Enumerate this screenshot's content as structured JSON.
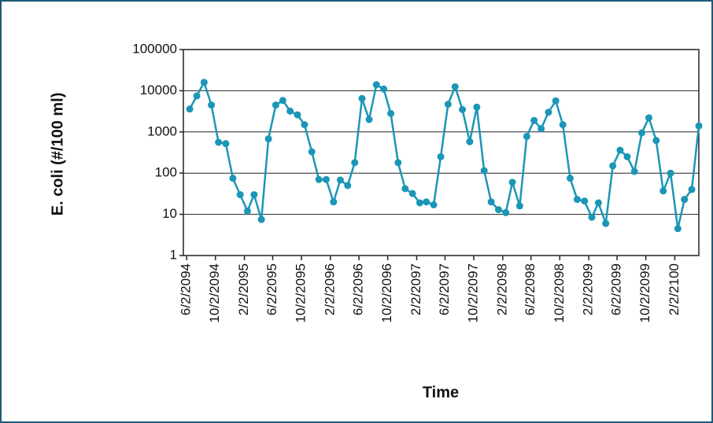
{
  "chart_data": {
    "type": "line",
    "ylabel": "E. coli (#/100 ml)",
    "xlabel": "Time",
    "yscale": "log",
    "grid": true,
    "ylim": [
      1,
      100000
    ],
    "yticks": [
      1,
      10,
      100,
      1000,
      10000,
      100000
    ],
    "xlim": [
      "2094-05-19",
      "2100-05-15"
    ],
    "xticks": [
      {
        "value": "2094-06-02",
        "label": "6/2/2094"
      },
      {
        "value": "2094-10-02",
        "label": "10/2/2094"
      },
      {
        "value": "2095-02-02",
        "label": "2/2/2095"
      },
      {
        "value": "2095-06-02",
        "label": "6/2/2095"
      },
      {
        "value": "2095-10-02",
        "label": "10/2/2095"
      },
      {
        "value": "2096-02-02",
        "label": "2/2/2096"
      },
      {
        "value": "2096-06-02",
        "label": "6/2/2096"
      },
      {
        "value": "2096-10-02",
        "label": "10/2/2096"
      },
      {
        "value": "2097-02-02",
        "label": "2/2/2097"
      },
      {
        "value": "2097-06-02",
        "label": "6/2/2097"
      },
      {
        "value": "2097-10-02",
        "label": "10/2/2097"
      },
      {
        "value": "2098-02-02",
        "label": "2/2/2098"
      },
      {
        "value": "2098-06-02",
        "label": "6/2/2098"
      },
      {
        "value": "2098-10-02",
        "label": "10/2/2098"
      },
      {
        "value": "2099-02-02",
        "label": "2/2/2099"
      },
      {
        "value": "2099-06-02",
        "label": "6/2/2099"
      },
      {
        "value": "2099-10-02",
        "label": "10/2/2099"
      },
      {
        "value": "2100-02-02",
        "label": "2/2/2100"
      }
    ],
    "x": [
      "2094-06-15",
      "2094-07-15",
      "2094-08-15",
      "2094-09-15",
      "2094-10-15",
      "2094-11-15",
      "2094-12-15",
      "2095-01-15",
      "2095-02-15",
      "2095-03-15",
      "2095-04-15",
      "2095-05-15",
      "2095-06-15",
      "2095-07-15",
      "2095-08-15",
      "2095-09-15",
      "2095-10-15",
      "2095-11-15",
      "2095-12-15",
      "2096-01-15",
      "2096-02-15",
      "2096-03-15",
      "2096-04-15",
      "2096-05-15",
      "2096-06-15",
      "2096-07-15",
      "2096-08-15",
      "2096-09-15",
      "2096-10-15",
      "2096-11-15",
      "2096-12-15",
      "2097-01-15",
      "2097-02-15",
      "2097-03-15",
      "2097-04-15",
      "2097-05-15",
      "2097-06-15",
      "2097-07-15",
      "2097-08-15",
      "2097-09-15",
      "2097-10-15",
      "2097-11-15",
      "2097-12-15",
      "2098-01-15",
      "2098-02-15",
      "2098-03-15",
      "2098-04-15",
      "2098-05-15",
      "2098-06-15",
      "2098-07-15",
      "2098-08-15",
      "2098-09-15",
      "2098-10-15",
      "2098-11-15",
      "2098-12-15",
      "2099-01-15",
      "2099-02-15",
      "2099-03-15",
      "2099-04-15",
      "2099-05-15",
      "2099-06-15",
      "2099-07-15",
      "2099-08-15",
      "2099-09-15",
      "2099-10-15",
      "2099-11-15",
      "2099-12-15",
      "2100-01-15",
      "2100-02-15",
      "2100-03-15",
      "2100-04-15",
      "2100-05-15"
    ],
    "series": [
      {
        "name": "E. coli",
        "color": "#1b96b6",
        "values": [
          3600,
          7500,
          16000,
          4500,
          560,
          520,
          75,
          30,
          12,
          30,
          7.5,
          680,
          4500,
          5800,
          3200,
          2600,
          1500,
          330,
          70,
          70,
          20,
          68,
          50,
          180,
          6500,
          2000,
          14000,
          11000,
          2800,
          180,
          42,
          32,
          19,
          20,
          17,
          250,
          4700,
          12500,
          3500,
          580,
          4000,
          115,
          20,
          13,
          11,
          60,
          16,
          780,
          1900,
          1200,
          3000,
          5700,
          1500,
          75,
          23,
          21,
          8.5,
          19,
          6,
          150,
          360,
          250,
          110,
          950,
          2200,
          620,
          37,
          100,
          4.5,
          23,
          40,
          1400
        ]
      }
    ]
  }
}
